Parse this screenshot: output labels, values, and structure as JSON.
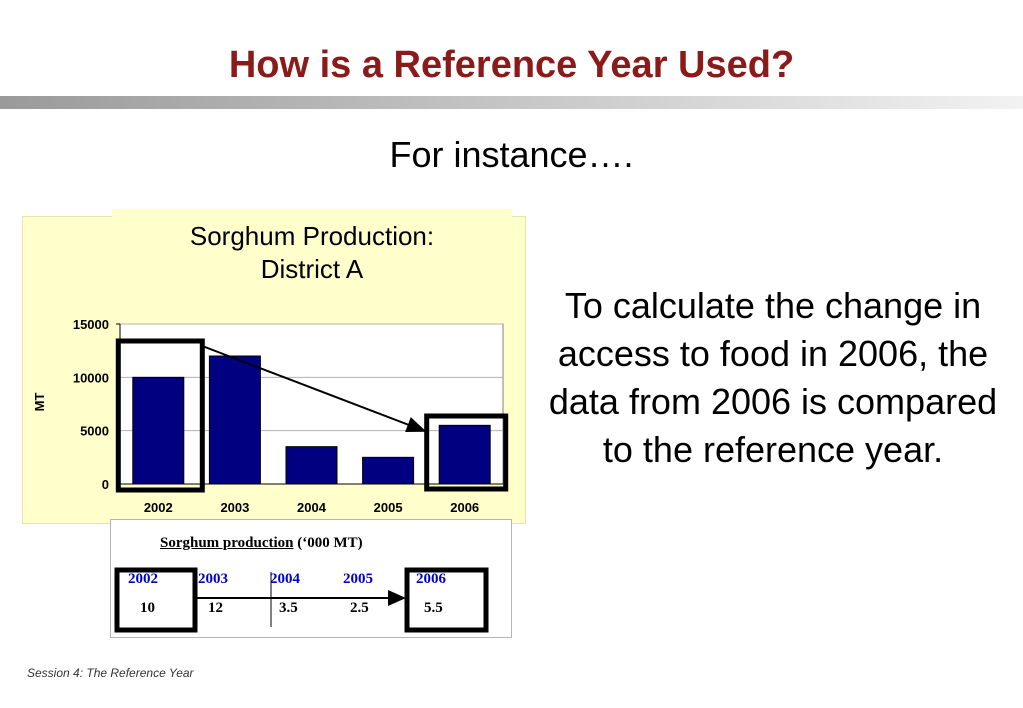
{
  "slide": {
    "title": "How is a Reference Year Used?",
    "subtitle": "For instance….",
    "body": "To calculate the change in access to food in 2006, the data from 2006 is compared to the reference year.",
    "footer": "Session 4: The Reference Year"
  },
  "chart_data": {
    "type": "bar",
    "title": "Sorghum Production: District A",
    "title_lines": [
      "Sorghum Production:",
      "District A"
    ],
    "xlabel": "",
    "ylabel": "MT",
    "categories": [
      "2002",
      "2003",
      "2004",
      "2005",
      "2006"
    ],
    "values": [
      10000,
      12000,
      3500,
      2500,
      5500
    ],
    "ylim": [
      0,
      15000
    ],
    "yticks": [
      "0",
      "5000",
      "10000",
      "15000"
    ],
    "grid": true,
    "bar_color": "#000080",
    "highlighted": [
      "2002",
      "2006"
    ]
  },
  "table": {
    "title_underlined": "Sorghum production",
    "title_rest": " (‘000 MT)",
    "years": [
      "2002",
      "2003",
      "2004",
      "2005",
      "2006"
    ],
    "values": [
      "10",
      "12",
      "3.5",
      "2.5",
      "5.5"
    ],
    "highlighted": [
      "2002",
      "2006"
    ]
  },
  "colors": {
    "title": "#8b1a1a",
    "chart_background": "#ffffcc",
    "year_text": "#0000cc",
    "bar": "#000080"
  }
}
